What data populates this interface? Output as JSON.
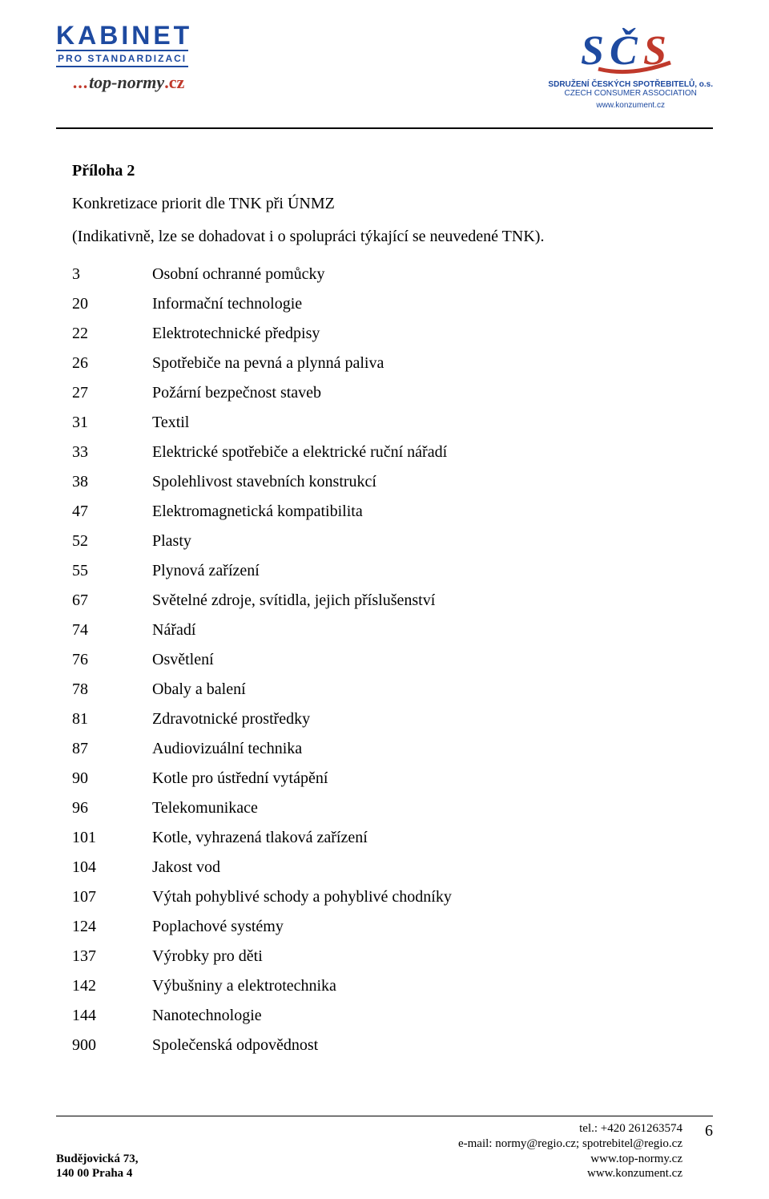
{
  "header": {
    "left": {
      "line1": "KABINET",
      "line2": "PRO STANDARDIZACI",
      "line3_dots": "...",
      "line3_main": "top-normy",
      "line3_suffix": ".cz"
    },
    "right": {
      "mark_letters": "SČS",
      "org_cs": "SDRUŽENÍ ČESKÝCH SPOTŘEBITELŮ, o.s.",
      "org_en": "CZECH CONSUMER ASSOCIATION",
      "url": "www.konzument.cz"
    }
  },
  "doc": {
    "title": "Příloha 2",
    "subtitle": "Konkretizace priorit dle TNK při ÚNMZ",
    "paren": "(Indikativně, lze se dohadovat i o spolupráci týkající se neuvedené TNK)."
  },
  "rows": [
    {
      "num": "3",
      "desc": "Osobní ochranné pomůcky"
    },
    {
      "num": "20",
      "desc": "Informační technologie"
    },
    {
      "num": "22",
      "desc": "Elektrotechnické předpisy"
    },
    {
      "num": "26",
      "desc": "Spotřebiče na pevná a plynná paliva"
    },
    {
      "num": "27",
      "desc": "Požární bezpečnost staveb"
    },
    {
      "num": "31",
      "desc": "Textil"
    },
    {
      "num": "33",
      "desc": "Elektrické spotřebiče a elektrické ruční nářadí"
    },
    {
      "num": "38",
      "desc": "Spolehlivost stavebních konstrukcí"
    },
    {
      "num": "47",
      "desc": "Elektromagnetická kompatibilita"
    },
    {
      "num": "52",
      "desc": "Plasty"
    },
    {
      "num": "55",
      "desc": "Plynová zařízení"
    },
    {
      "num": "67",
      "desc": "Světelné zdroje, svítidla, jejich příslušenství"
    },
    {
      "num": "74",
      "desc": "Nářadí"
    },
    {
      "num": "76",
      "desc": "Osvětlení"
    },
    {
      "num": "78",
      "desc": "Obaly a balení"
    },
    {
      "num": "81",
      "desc": "Zdravotnické prostředky"
    },
    {
      "num": "87",
      "desc": "Audiovizuální technika"
    },
    {
      "num": "90",
      "desc": "Kotle pro ústřední vytápění"
    },
    {
      "num": "96",
      "desc": "Telekomunikace"
    },
    {
      "num": "101",
      "desc": "Kotle, vyhrazená tlaková zařízení"
    },
    {
      "num": "104",
      "desc": "Jakost vod"
    },
    {
      "num": "107",
      "desc": "Výtah pohyblivé schody a pohyblivé chodníky"
    },
    {
      "num": "124",
      "desc": "Poplachové systémy"
    },
    {
      "num": "137",
      "desc": "Výrobky pro děti"
    },
    {
      "num": "142",
      "desc": "Výbušniny a elektrotechnika"
    },
    {
      "num": "144",
      "desc": "Nanotechnologie"
    },
    {
      "num": "900",
      "desc": "Společenská odpovědnost"
    }
  ],
  "footer": {
    "addr1": "Budějovická 73,",
    "addr2": "140 00 Praha 4",
    "tel": "tel.: +420 261263574",
    "email": "e-mail: normy@regio.cz; spotrebitel@regio.cz",
    "url1": "www.top-normy.cz",
    "url2": "www.konzument.cz",
    "page": "6"
  },
  "colors": {
    "brand_blue": "#1e4aa0",
    "brand_red": "#c0392b",
    "text": "#000000",
    "background": "#ffffff"
  }
}
